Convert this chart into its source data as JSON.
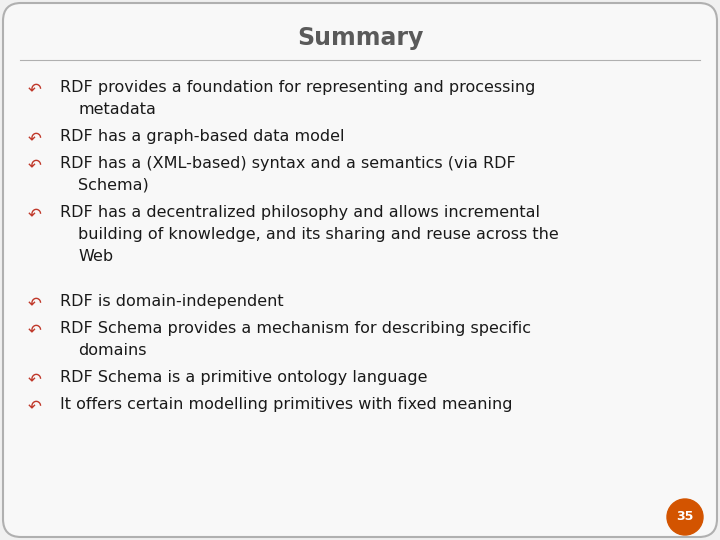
{
  "title": "Summary",
  "title_color": "#5a5a5a",
  "bg_color": "#f0f0f0",
  "border_color": "#b0b0b0",
  "bullet_color": "#c0392b",
  "text_color": "#1a1a1a",
  "slide_number": "35",
  "slide_number_bg": "#d35400",
  "slide_number_text_color": "#ffffff",
  "font_family": "DejaVu Sans",
  "title_fontsize": 17,
  "body_fontsize": 11.5,
  "figwidth": 7.2,
  "figheight": 5.4,
  "dpi": 100,
  "bullet_configs": [
    {
      "lines": 2,
      "line1": "RDF provides a foundation for representing and processing",
      "line2": "metadata"
    },
    {
      "lines": 1,
      "line1": "RDF has a graph-based data model",
      "line2": ""
    },
    {
      "lines": 2,
      "line1": "RDF has a (XML-based) syntax and a semantics (via RDF",
      "line2": "Schema)"
    },
    {
      "lines": 3,
      "line1": "RDF has a decentralized philosophy and allows incremental",
      "line2": "building of knowledge, and its sharing and reuse across the",
      "line3": "Web"
    },
    {
      "lines": 0,
      "line1": "",
      "line2": ""
    },
    {
      "lines": 1,
      "line1": "RDF is domain-independent",
      "line2": ""
    },
    {
      "lines": 2,
      "line1": "RDF Schema provides a mechanism for describing specific",
      "line2": "domains"
    },
    {
      "lines": 1,
      "line1": "RDF Schema is a primitive ontology language",
      "line2": ""
    },
    {
      "lines": 1,
      "line1": "It offers certain modelling primitives with fixed meaning",
      "line2": ""
    }
  ]
}
